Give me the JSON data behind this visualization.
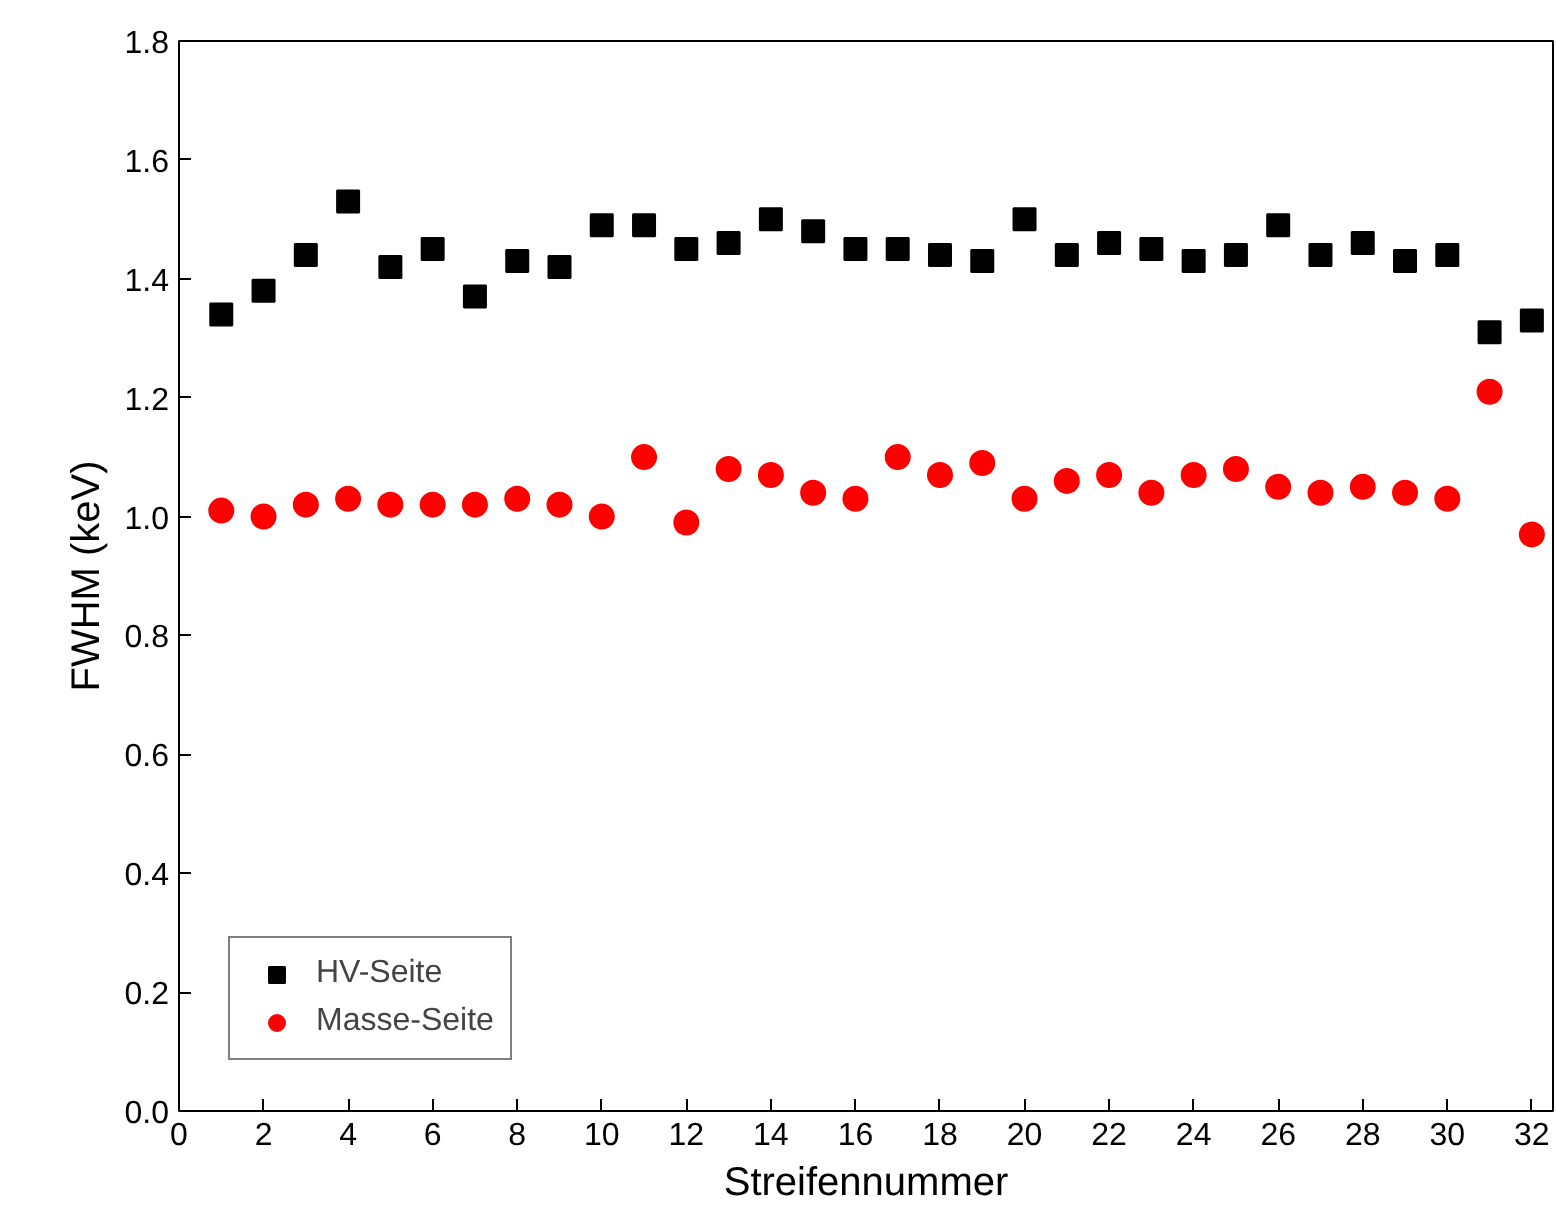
{
  "chart_data": {
    "type": "scatter",
    "xlabel": "Streifennummer",
    "ylabel": "FWHM (keV)",
    "x": [
      1,
      2,
      3,
      4,
      5,
      6,
      7,
      8,
      9,
      10,
      11,
      12,
      13,
      14,
      15,
      16,
      17,
      18,
      19,
      20,
      21,
      22,
      23,
      24,
      25,
      26,
      27,
      28,
      29,
      30,
      31,
      32
    ],
    "series": [
      {
        "name": "HV-Seite",
        "color": "#000000",
        "marker": "square",
        "values": [
          1.34,
          1.38,
          1.44,
          1.53,
          1.42,
          1.45,
          1.37,
          1.43,
          1.42,
          1.49,
          1.49,
          1.45,
          1.46,
          1.5,
          1.48,
          1.45,
          1.45,
          1.44,
          1.43,
          1.5,
          1.44,
          1.46,
          1.45,
          1.43,
          1.44,
          1.49,
          1.44,
          1.46,
          1.43,
          1.44,
          1.31,
          1.33
        ]
      },
      {
        "name": "Masse-Seite",
        "color": "#ff0000",
        "marker": "circle",
        "values": [
          1.01,
          1.0,
          1.02,
          1.03,
          1.02,
          1.02,
          1.02,
          1.03,
          1.02,
          1.0,
          1.1,
          0.99,
          1.08,
          1.07,
          1.04,
          1.03,
          1.1,
          1.07,
          1.09,
          1.03,
          1.06,
          1.07,
          1.04,
          1.07,
          1.08,
          1.05,
          1.04,
          1.05,
          1.04,
          1.03,
          1.21,
          0.97
        ]
      }
    ],
    "xlim": [
      0,
      32.5
    ],
    "xticks": [
      0,
      2,
      4,
      6,
      8,
      10,
      12,
      14,
      16,
      18,
      20,
      22,
      24,
      26,
      28,
      30,
      32
    ],
    "ylim": [
      0,
      1.8
    ],
    "yticks": [
      {
        "value": 0,
        "label": "0.0"
      },
      0.2,
      0.4,
      0.6,
      0.8,
      {
        "value": 1,
        "label": "1.0"
      },
      1.2,
      1.4,
      1.6,
      1.8
    ],
    "grid": false,
    "legend": "bottom left"
  }
}
